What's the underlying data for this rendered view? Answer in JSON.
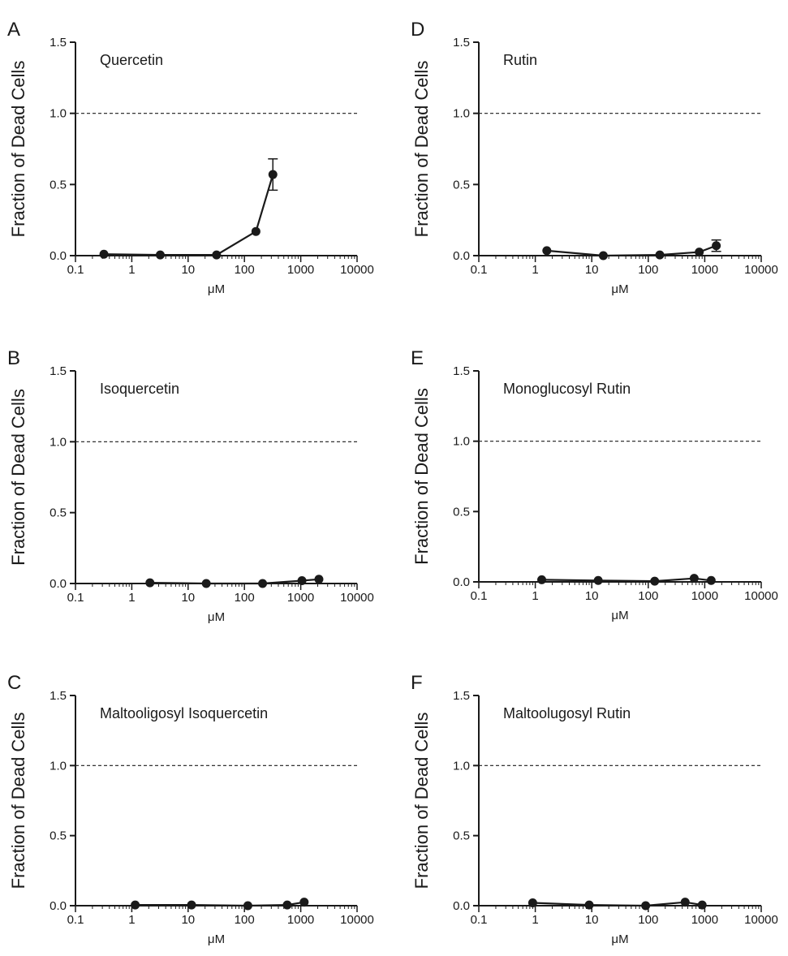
{
  "figure": {
    "chart_data": [
      {
        "panel": "A",
        "type": "line",
        "title": "Quercetin",
        "xlabel": "μM",
        "ylabel": "Fraction of Dead Cells",
        "x_scale": "log",
        "xlim": [
          0.1,
          10000
        ],
        "ylim": [
          0,
          1.5
        ],
        "x_tick_labels": [
          "0.1",
          "1",
          "10",
          "100",
          "1000",
          "10000"
        ],
        "y_tick_labels": [
          "0.0",
          "0.5",
          "1.0",
          "1.5"
        ],
        "reference_line": 1.0,
        "series": [
          {
            "x": [
              0.32,
              3.2,
              32,
              160,
              320
            ],
            "y": [
              0.01,
              0.005,
              0.005,
              0.17,
              0.57
            ],
            "err": [
              0,
              0,
              0,
              0,
              0.11
            ]
          }
        ]
      },
      {
        "panel": "B",
        "type": "line",
        "title": "Isoquercetin",
        "xlabel": "μM",
        "ylabel": "Fraction of Dead Cells",
        "x_scale": "log",
        "xlim": [
          0.1,
          10000
        ],
        "ylim": [
          0,
          1.5
        ],
        "x_tick_labels": [
          "0.1",
          "1",
          "10",
          "100",
          "1000",
          "10000"
        ],
        "y_tick_labels": [
          "0.0",
          "0.5",
          "1.0",
          "1.5"
        ],
        "reference_line": 1.0,
        "series": [
          {
            "x": [
              2.1,
              21,
              210,
              1050,
              2100
            ],
            "y": [
              0.005,
              0.0,
              0.0,
              0.02,
              0.03
            ],
            "err": [
              0,
              0,
              0,
              0,
              0
            ]
          }
        ]
      },
      {
        "panel": "C",
        "type": "line",
        "title": "Maltooligosyl Isoquercetin",
        "xlabel": "μM",
        "ylabel": "Fraction of Dead Cells",
        "x_scale": "log",
        "xlim": [
          0.1,
          10000
        ],
        "ylim": [
          0,
          1.5
        ],
        "x_tick_labels": [
          "0.1",
          "1",
          "10",
          "100",
          "1000",
          "10000"
        ],
        "y_tick_labels": [
          "0.0",
          "0.5",
          "1.0",
          "1.5"
        ],
        "reference_line": 1.0,
        "series": [
          {
            "x": [
              1.15,
              11.5,
              115,
              575,
              1150
            ],
            "y": [
              0.005,
              0.005,
              0.0,
              0.005,
              0.025
            ],
            "err": [
              0,
              0,
              0,
              0,
              0
            ]
          }
        ]
      },
      {
        "panel": "D",
        "type": "line",
        "title": "Rutin",
        "xlabel": "μM",
        "ylabel": "Fraction of Dead Cells",
        "x_scale": "log",
        "xlim": [
          0.1,
          10000
        ],
        "ylim": [
          0,
          1.5
        ],
        "x_tick_labels": [
          "0.1",
          "1",
          "10",
          "100",
          "1000",
          "10000"
        ],
        "y_tick_labels": [
          "0.0",
          "0.5",
          "1.0",
          "1.5"
        ],
        "reference_line": 1.0,
        "series": [
          {
            "x": [
              1.6,
              16,
              160,
              800,
              1600
            ],
            "y": [
              0.035,
              0.0,
              0.005,
              0.025,
              0.07
            ],
            "err": [
              0,
              0,
              0,
              0,
              0.04
            ]
          }
        ]
      },
      {
        "panel": "E",
        "type": "line",
        "title": "Monoglucosyl Rutin",
        "xlabel": "μM",
        "ylabel": "Fraction of Dead Cells",
        "x_scale": "log",
        "xlim": [
          0.1,
          10000
        ],
        "ylim": [
          0,
          1.5
        ],
        "x_tick_labels": [
          "0.1",
          "1",
          "10",
          "100",
          "1000",
          "10000"
        ],
        "y_tick_labels": [
          "0.0",
          "0.5",
          "1.0",
          "1.5"
        ],
        "reference_line": 1.0,
        "series": [
          {
            "x": [
              1.3,
              13,
              130,
              650,
              1300
            ],
            "y": [
              0.015,
              0.01,
              0.005,
              0.025,
              0.01
            ],
            "err": [
              0,
              0,
              0,
              0,
              0
            ]
          }
        ]
      },
      {
        "panel": "F",
        "type": "line",
        "title": "Maltoolugosyl Rutin",
        "xlabel": "μM",
        "ylabel": "Fraction of Dead Cells",
        "x_scale": "log",
        "xlim": [
          0.1,
          10000
        ],
        "ylim": [
          0,
          1.5
        ],
        "x_tick_labels": [
          "0.1",
          "1",
          "10",
          "100",
          "1000",
          "10000"
        ],
        "y_tick_labels": [
          "0.0",
          "0.5",
          "1.0",
          "1.5"
        ],
        "reference_line": 1.0,
        "series": [
          {
            "x": [
              0.9,
              9,
              90,
              450,
              900
            ],
            "y": [
              0.02,
              0.005,
              0.0,
              0.025,
              0.005
            ],
            "err": [
              0,
              0,
              0,
              0,
              0
            ]
          }
        ]
      }
    ]
  }
}
